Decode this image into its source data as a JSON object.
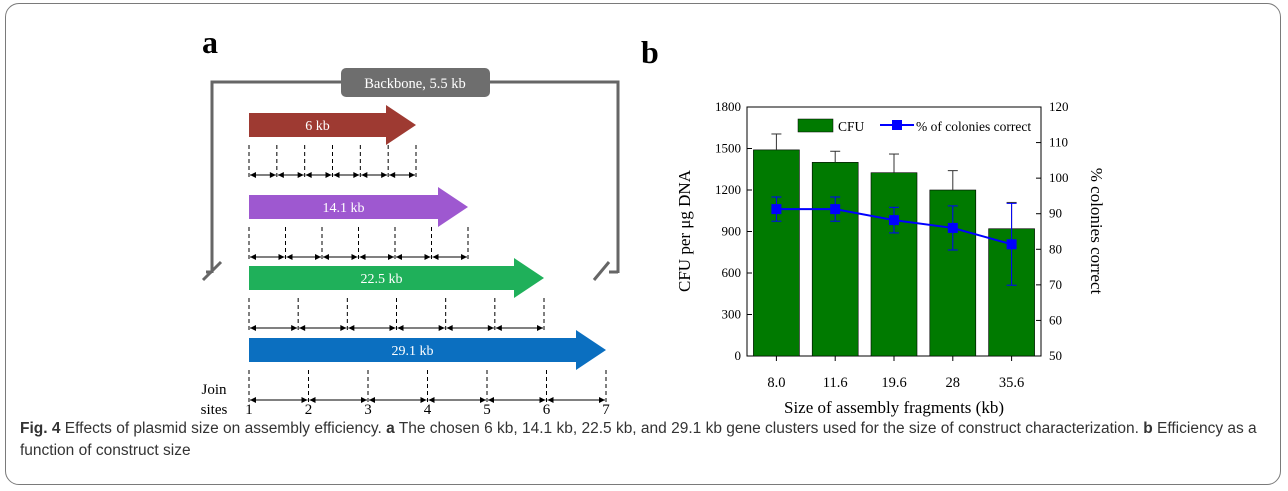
{
  "panel_a": {
    "label": "a",
    "backbone_label": "Backbone, 5.5 kb",
    "join_label_line1": "Join",
    "join_label_line2": "sites",
    "join_numbers": [
      "1",
      "2",
      "3",
      "4",
      "5",
      "6",
      "7"
    ],
    "constructs": [
      {
        "label": "6 kb",
        "color": "#9e3a32",
        "segments": 6
      },
      {
        "label": "14.1 kb",
        "color": "#9e58d0",
        "segments": 6
      },
      {
        "label": "22.5 kb",
        "color": "#1fb05a",
        "segments": 6
      },
      {
        "label": "29.1 kb",
        "color": "#0b6fc0",
        "segments": 6
      }
    ]
  },
  "panel_b": {
    "label": "b",
    "chart_data": {
      "type": "bar",
      "categories": [
        "8.0",
        "11.6",
        "19.6",
        "28",
        "35.6"
      ],
      "series": [
        {
          "name": "CFU",
          "axis": "left",
          "type": "bar",
          "color": "#007a00",
          "values": [
            1490,
            1400,
            1325,
            1200,
            920
          ],
          "errors": [
            115,
            80,
            135,
            140,
            190
          ]
        },
        {
          "name": "% of colonies correct",
          "axis": "right",
          "type": "line",
          "color": "#0000ff",
          "values": [
            91.3,
            91.3,
            88.2,
            86.0,
            81.4
          ],
          "errors": [
            3.4,
            3.4,
            3.6,
            6.2,
            11.5
          ]
        }
      ],
      "xlabel": "Size of assembly fragments (kb)",
      "ylabel": "CFU per μg DNA",
      "y2label": "% colonies correct",
      "ylim": [
        0,
        1800
      ],
      "y2lim": [
        50,
        120
      ],
      "yticks": [
        "0",
        "300",
        "600",
        "900",
        "1200",
        "1500",
        "1800"
      ],
      "y2ticks": [
        "50",
        "60",
        "70",
        "80",
        "90",
        "100",
        "110",
        "120"
      ],
      "legend_position": "top"
    }
  },
  "caption": {
    "fig_label": "Fig. 4",
    "title": "Effects of plasmid size on assembly efficiency.",
    "a_label": "a",
    "a_text": "The chosen 6 kb, 14.1 kb, 22.5 kb, and 29.1 kb gene clusters used for the size of construct characterization.",
    "b_label": "b",
    "b_text": "Efficiency as a function of construct size"
  }
}
